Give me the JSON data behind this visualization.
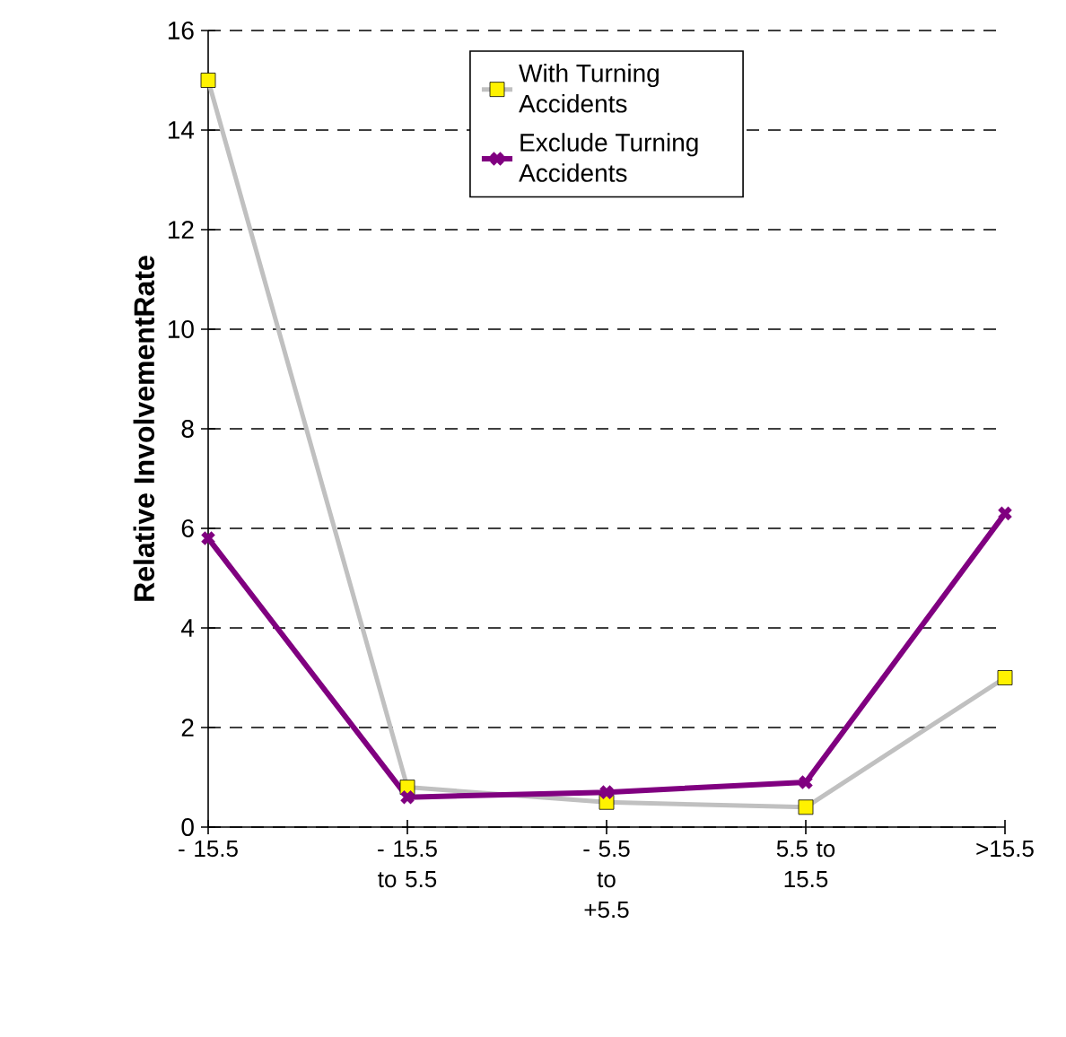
{
  "chart_data": {
    "type": "line",
    "ylabel": "Relative InvolvementRate",
    "categories": [
      "- 15.5",
      "- 15.5 to 5.5",
      "- 5.5 to +5.5",
      "5.5 to 15.5",
      ">15.5"
    ],
    "series": [
      {
        "name": "With Turning Accidents",
        "color": "#c0c0c0",
        "marker": "square",
        "values": [
          15.0,
          0.8,
          0.5,
          0.4,
          3.0
        ]
      },
      {
        "name": "Exclude Turning Accidents",
        "color": "#800080",
        "marker": "cross",
        "values": [
          5.8,
          0.6,
          0.7,
          0.9,
          6.3
        ]
      }
    ],
    "ylim": [
      0,
      16
    ],
    "yticks": [
      0,
      2,
      4,
      6,
      8,
      10,
      12,
      14,
      16
    ],
    "grid": "y",
    "legend": "top"
  }
}
